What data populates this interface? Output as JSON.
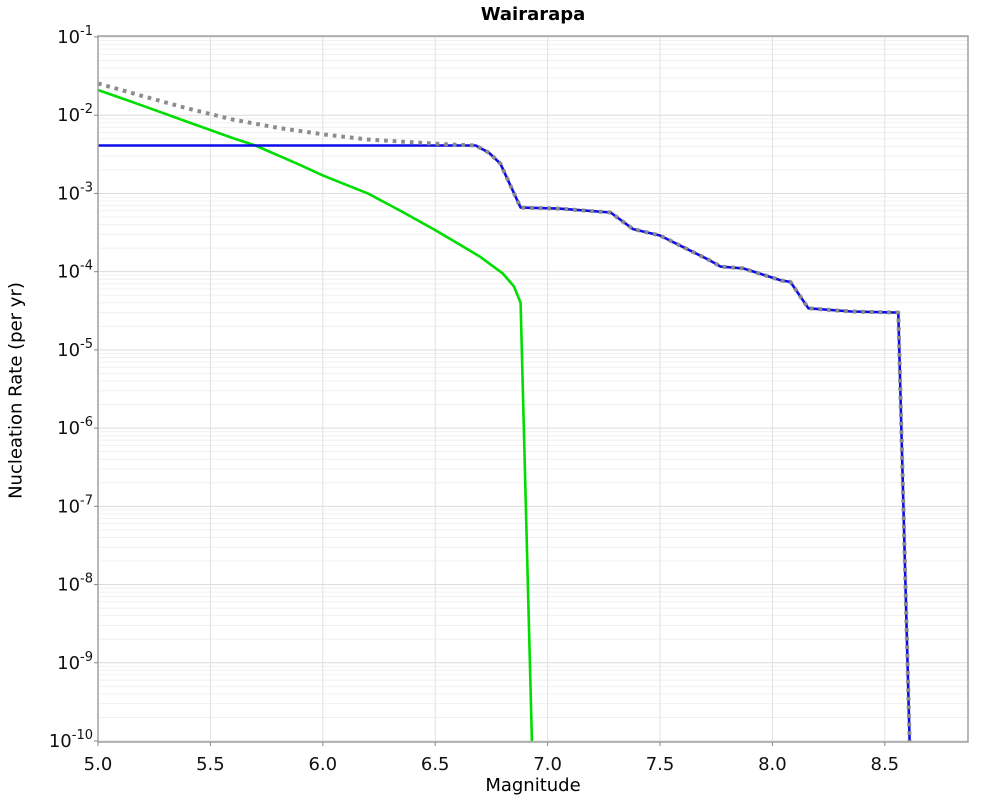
{
  "page": {
    "title": "Wairarapa"
  },
  "chart_data": {
    "type": "line",
    "title": "Wairarapa",
    "xlabel": "Magnitude",
    "ylabel": "Nucleation Rate (per yr)",
    "xlim": [
      5.0,
      8.87
    ],
    "ylim": [
      1e-10,
      0.1
    ],
    "x_ticks": [
      5.0,
      5.5,
      6.0,
      6.5,
      7.0,
      7.5,
      8.0,
      8.5
    ],
    "y_tick_exponents": [
      -1,
      -2,
      -3,
      -4,
      -5,
      -6,
      -7,
      -8,
      -9,
      -10
    ],
    "grid": {
      "vertical_major_step": 0.5,
      "log_minor_lines": true,
      "legend": "none"
    },
    "colors": {
      "major_grid": "#dcdcdc",
      "minor_grid": "#f0f0f0",
      "vertical_grid": "#e2e2e2",
      "plot_border": "#a0a0a0",
      "tick_mark": "#888888"
    },
    "series": [
      {
        "name": "green-solid-curve",
        "color": "#00dd00",
        "style": "solid",
        "width": 2.6,
        "points": [
          [
            5.0,
            0.021
          ],
          [
            5.2,
            0.0132
          ],
          [
            5.4,
            0.0082
          ],
          [
            5.6,
            0.0051
          ],
          [
            5.7,
            0.0041
          ],
          [
            5.9,
            0.0023
          ],
          [
            6.0,
            0.0017
          ],
          [
            6.2,
            0.001
          ],
          [
            6.35,
            0.00059
          ],
          [
            6.5,
            0.00034
          ],
          [
            6.6,
            0.00023
          ],
          [
            6.7,
            0.000155
          ],
          [
            6.8,
            9.5e-05
          ],
          [
            6.85,
            6.5e-05
          ],
          [
            6.88,
            4e-05
          ],
          [
            6.93,
            1e-10
          ]
        ]
      },
      {
        "name": "blue-solid-curve",
        "color": "#0d0de8",
        "style": "solid",
        "width": 2.6,
        "points": [
          [
            5.0,
            0.0041
          ],
          [
            6.68,
            0.0041
          ],
          [
            6.74,
            0.0033
          ],
          [
            6.79,
            0.0024
          ],
          [
            6.88,
            0.00066
          ],
          [
            7.05,
            0.00064
          ],
          [
            7.28,
            0.00057
          ],
          [
            7.38,
            0.00035
          ],
          [
            7.5,
            0.00029
          ],
          [
            7.57,
            0.00023
          ],
          [
            7.72,
            0.00014
          ],
          [
            7.77,
            0.000116
          ],
          [
            7.87,
            0.00011
          ],
          [
            8.04,
            7.7e-05
          ],
          [
            8.08,
            7.4e-05
          ],
          [
            8.16,
            3.4e-05
          ],
          [
            8.35,
            3.1e-05
          ],
          [
            8.56,
            3e-05
          ],
          [
            8.61,
            1e-10
          ]
        ]
      },
      {
        "name": "gray-dotted-curve",
        "color": "#8c8c8c",
        "style": "dotted",
        "width": 4,
        "points": [
          [
            5.0,
            0.0255
          ],
          [
            5.2,
            0.0175
          ],
          [
            5.4,
            0.0122
          ],
          [
            5.6,
            0.0088
          ],
          [
            5.8,
            0.0069
          ],
          [
            6.0,
            0.0057
          ],
          [
            6.2,
            0.0049
          ],
          [
            6.4,
            0.0045
          ],
          [
            6.55,
            0.00425
          ],
          [
            6.68,
            0.0041
          ],
          [
            6.74,
            0.0033
          ],
          [
            6.79,
            0.0024
          ],
          [
            6.88,
            0.00066
          ],
          [
            7.05,
            0.00064
          ],
          [
            7.28,
            0.00057
          ],
          [
            7.38,
            0.00035
          ],
          [
            7.5,
            0.00029
          ],
          [
            7.57,
            0.00023
          ],
          [
            7.72,
            0.00014
          ],
          [
            7.77,
            0.000116
          ],
          [
            7.87,
            0.00011
          ],
          [
            8.04,
            7.7e-05
          ],
          [
            8.08,
            7.4e-05
          ],
          [
            8.16,
            3.4e-05
          ],
          [
            8.35,
            3.1e-05
          ],
          [
            8.56,
            3e-05
          ],
          [
            8.61,
            1e-10
          ]
        ]
      }
    ]
  }
}
